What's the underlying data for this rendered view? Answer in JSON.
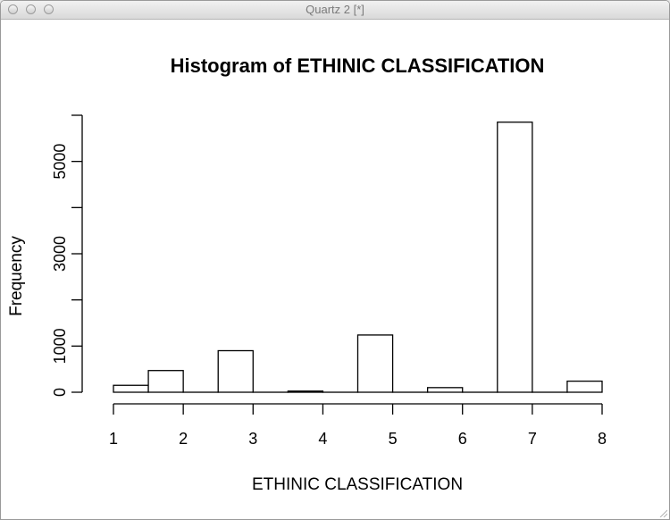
{
  "window": {
    "title": "Quartz 2 [*]"
  },
  "chart_data": {
    "type": "bar",
    "title": "Histogram of ETHINIC CLASSIFICATION",
    "xlabel": "ETHINIC CLASSIFICATION",
    "ylabel": "Frequency",
    "bins": [
      {
        "start": 1.0,
        "end": 1.5,
        "value": 150
      },
      {
        "start": 1.5,
        "end": 2.0,
        "value": 470
      },
      {
        "start": 2.0,
        "end": 2.5,
        "value": 0
      },
      {
        "start": 2.5,
        "end": 3.0,
        "value": 900
      },
      {
        "start": 3.0,
        "end": 3.5,
        "value": 0
      },
      {
        "start": 3.5,
        "end": 4.0,
        "value": 25
      },
      {
        "start": 4.0,
        "end": 4.5,
        "value": 0
      },
      {
        "start": 4.5,
        "end": 5.0,
        "value": 1240
      },
      {
        "start": 5.0,
        "end": 5.5,
        "value": 0
      },
      {
        "start": 5.5,
        "end": 6.0,
        "value": 100
      },
      {
        "start": 6.0,
        "end": 6.5,
        "value": 0
      },
      {
        "start": 6.5,
        "end": 7.0,
        "value": 5850
      },
      {
        "start": 7.0,
        "end": 7.5,
        "value": 0
      },
      {
        "start": 7.5,
        "end": 8.0,
        "value": 240
      }
    ],
    "xlim": [
      1,
      8
    ],
    "ylim": [
      0,
      6000
    ],
    "x_ticks": [
      "1",
      "2",
      "3",
      "4",
      "5",
      "6",
      "7",
      "8"
    ],
    "y_ticks": [
      0,
      1000,
      2000,
      3000,
      4000,
      5000,
      6000
    ],
    "y_tick_labels": [
      {
        "value": 0,
        "label": "0"
      },
      {
        "value": 1000,
        "label": "1000"
      },
      {
        "value": 3000,
        "label": "3000"
      },
      {
        "value": 5000,
        "label": "5000"
      }
    ],
    "grid": false,
    "legend": "none",
    "colors": {
      "bar_fill": "#ffffff",
      "bar_stroke": "#000000",
      "axis": "#000000"
    }
  }
}
